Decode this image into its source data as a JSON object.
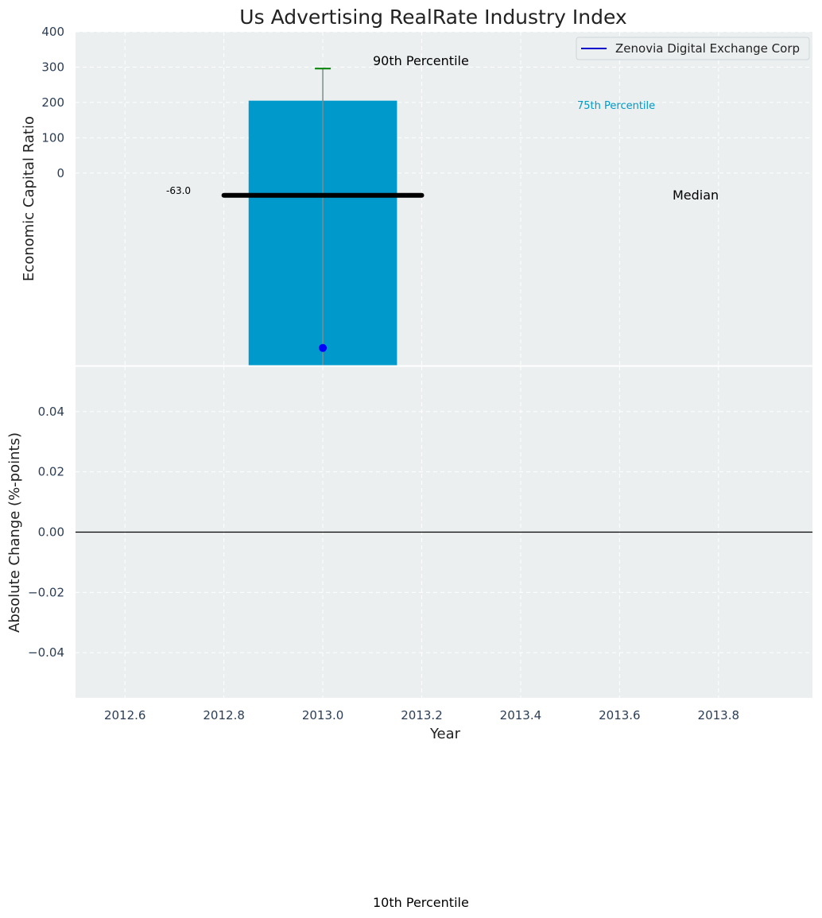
{
  "chart_data": [
    {
      "type": "bar",
      "title": "Us Advertising RealRate Industry Index",
      "ylabel": "Economic Capital Ratio",
      "x": [
        2013.0
      ],
      "xlim": [
        2012.5,
        2013.99
      ],
      "ylim": [
        -545,
        400
      ],
      "yticks": [
        0,
        100,
        200,
        300,
        400
      ],
      "bar": {
        "x": 2013.0,
        "bottom": -545,
        "top": 205,
        "width": 0.3,
        "color": "#0099cc"
      },
      "whisker": {
        "x": 2013.0,
        "low": -545,
        "high": 296,
        "cap_color": "#008000"
      },
      "median": {
        "y": -63,
        "x_from": 2012.8,
        "x_to": 2013.2,
        "label": "-63.0",
        "text": "Median"
      },
      "company_point": {
        "x": 2013.0,
        "y": -495,
        "color": "#0000ff"
      },
      "percentile_labels": {
        "p90": "90th Percentile",
        "p75": "75th Percentile",
        "p10": "10th Percentile"
      },
      "legend": {
        "entries": [
          {
            "name": "Zenovia Digital Exchange Corp",
            "color": "#0000cc"
          }
        ],
        "placement": "top-right"
      },
      "grid": true
    },
    {
      "type": "line",
      "ylabel": "Absolute Change (%-points)",
      "xlabel": "Year",
      "xlim": [
        2012.5,
        2013.99
      ],
      "ylim": [
        -0.055,
        0.055
      ],
      "yticks": [
        -0.04,
        -0.02,
        0.0,
        0.02,
        0.04
      ],
      "ytick_labels": [
        "−0.04",
        "−0.02",
        "0.00",
        "0.02",
        "0.04"
      ],
      "xticks": [
        2012.6,
        2012.8,
        2013.0,
        2013.2,
        2013.4,
        2013.6,
        2013.8
      ],
      "xtick_labels": [
        "2012.6",
        "2012.8",
        "2013.0",
        "2013.2",
        "2013.4",
        "2013.6",
        "2013.8"
      ],
      "zero_line": 0,
      "grid": true
    }
  ]
}
